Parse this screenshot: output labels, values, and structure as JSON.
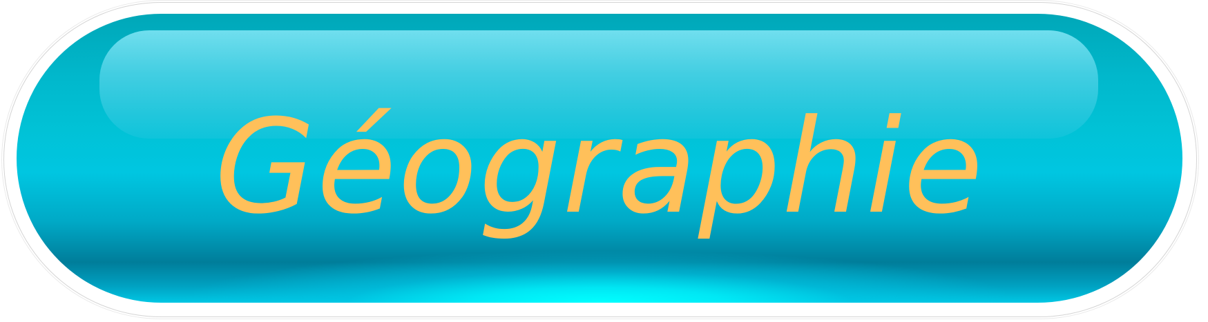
{
  "button": {
    "label": "Géographie",
    "label_color": "#ffc05a",
    "fill_colors": [
      "#00a7b8",
      "#01c2d6",
      "#007d9a",
      "#00ffff"
    ]
  }
}
